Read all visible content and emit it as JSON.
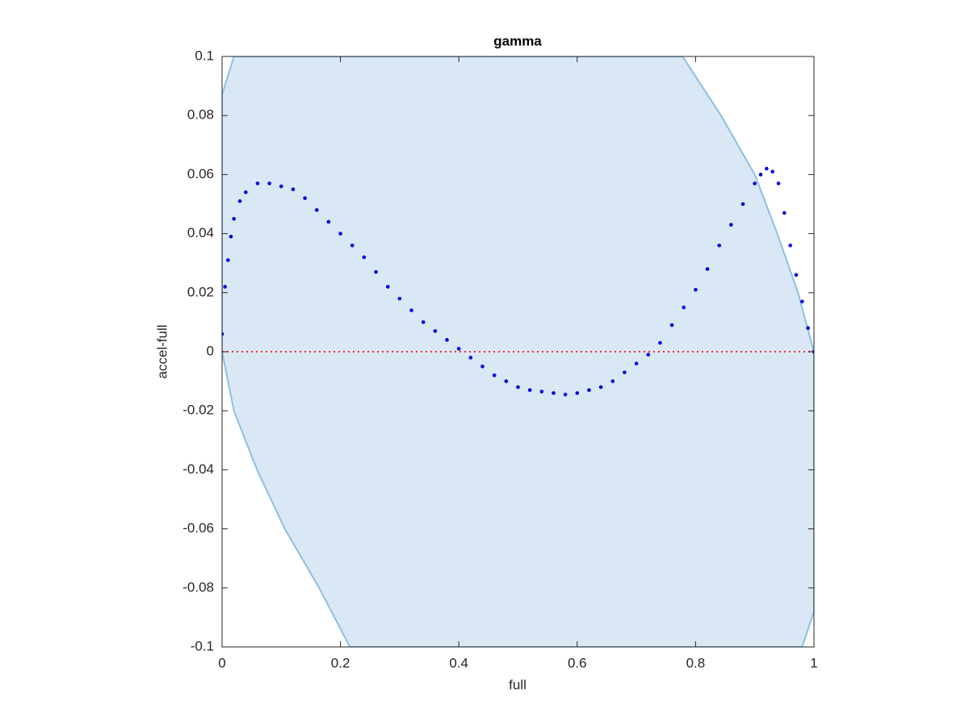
{
  "chart_data": {
    "type": "scatter",
    "title": "gamma",
    "x_label": "full",
    "y_label": "accel-full",
    "xlim": [
      0,
      1
    ],
    "ylim": [
      -0.1,
      0.1
    ],
    "xticks": [
      0,
      0.2,
      0.4,
      0.6,
      0.8,
      1
    ],
    "yticks": [
      -0.1,
      -0.08,
      -0.06,
      -0.04,
      -0.02,
      0,
      0.02,
      0.04,
      0.06,
      0.08,
      0.1
    ],
    "region": {
      "fill": "#d9e8f4",
      "edge_color": "#8cc0e4",
      "x": [
        0,
        0.02,
        0.778,
        0.843,
        0.9,
        0.938,
        0.973,
        1,
        1,
        0.98,
        0.216,
        0.164,
        0.106,
        0.059,
        0.02,
        0
      ],
      "y": [
        0.087,
        0.1,
        0.1,
        0.08,
        0.06,
        0.04,
        0.02,
        0,
        -0.088,
        -0.1,
        -0.1,
        -0.08,
        -0.06,
        -0.04,
        -0.02,
        0
      ]
    },
    "reference_line": {
      "y": 0,
      "color": "#ff2a2a"
    },
    "series": [
      {
        "color": "#0000e0",
        "x": [
          0,
          0.005,
          0.01,
          0.015,
          0.02,
          0.03,
          0.04,
          0.06,
          0.08,
          0.1,
          0.12,
          0.14,
          0.16,
          0.18,
          0.2,
          0.22,
          0.24,
          0.26,
          0.28,
          0.3,
          0.32,
          0.34,
          0.36,
          0.38,
          0.4,
          0.42,
          0.44,
          0.46,
          0.48,
          0.5,
          0.52,
          0.54,
          0.56,
          0.58,
          0.6,
          0.62,
          0.64,
          0.66,
          0.68,
          0.7,
          0.72,
          0.74,
          0.76,
          0.78,
          0.8,
          0.82,
          0.84,
          0.86,
          0.88,
          0.9,
          0.91,
          0.92,
          0.93,
          0.94,
          0.95,
          0.96,
          0.97,
          0.98,
          0.99,
          1
        ],
        "values": [
          0.006,
          0.022,
          0.031,
          0.039,
          0.045,
          0.051,
          0.054,
          0.057,
          0.057,
          0.056,
          0.055,
          0.052,
          0.048,
          0.044,
          0.04,
          0.036,
          0.032,
          0.027,
          0.022,
          0.018,
          0.014,
          0.01,
          0.007,
          0.004,
          0.001,
          -0.002,
          -0.005,
          -0.008,
          -0.01,
          -0.012,
          -0.013,
          -0.0135,
          -0.014,
          -0.0145,
          -0.014,
          -0.013,
          -0.012,
          -0.01,
          -0.007,
          -0.004,
          -0.001,
          0.003,
          0.009,
          0.015,
          0.021,
          0.028,
          0.036,
          0.043,
          0.05,
          0.057,
          0.06,
          0.062,
          0.061,
          0.057,
          0.047,
          0.036,
          0.026,
          0.017,
          0.008,
          0
        ]
      }
    ]
  }
}
